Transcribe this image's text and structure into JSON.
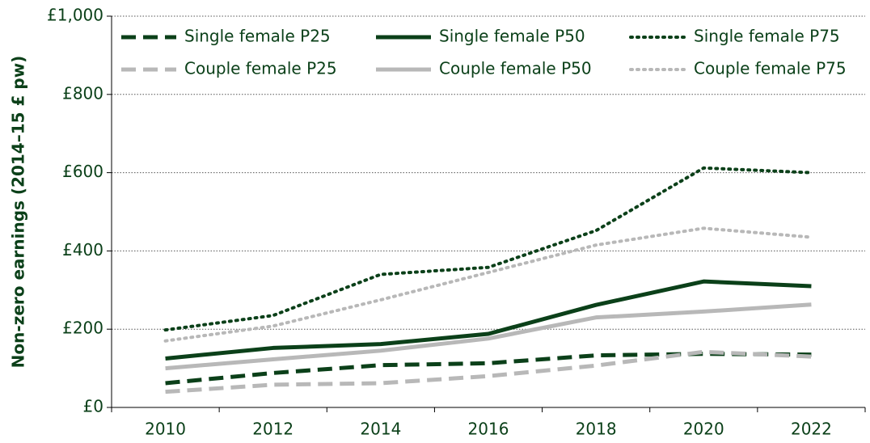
{
  "chart_data": {
    "type": "line",
    "y_label": "Non-zero earnings (2014–15 £ pw)",
    "categories": [
      "2010",
      "2012",
      "2014",
      "2016",
      "2018",
      "2020",
      "2022"
    ],
    "series": [
      {
        "name": "Single female P25",
        "color": "#0b4019",
        "style": "dashed",
        "values": [
          62,
          88,
          108,
          113,
          133,
          137,
          135
        ]
      },
      {
        "name": "Single female P50",
        "color": "#0b4019",
        "style": "solid",
        "values": [
          125,
          152,
          162,
          188,
          262,
          322,
          310
        ]
      },
      {
        "name": "Single female P75",
        "color": "#0b4019",
        "style": "dotted",
        "values": [
          198,
          235,
          340,
          358,
          452,
          612,
          600
        ]
      },
      {
        "name": "Couple female P25",
        "color": "#b8b8b8",
        "style": "dashed",
        "values": [
          40,
          58,
          62,
          80,
          107,
          142,
          130
        ]
      },
      {
        "name": "Couple female P50",
        "color": "#b8b8b8",
        "style": "solid",
        "values": [
          100,
          123,
          145,
          176,
          230,
          245,
          263
        ]
      },
      {
        "name": "Couple female P75",
        "color": "#b8b8b8",
        "style": "dotted",
        "values": [
          170,
          208,
          275,
          345,
          415,
          458,
          435
        ]
      }
    ],
    "ylim": [
      0,
      1000
    ],
    "yticks": [
      {
        "value": 0,
        "label": "£0"
      },
      {
        "value": 200,
        "label": "£200"
      },
      {
        "value": 400,
        "label": "£400"
      },
      {
        "value": 600,
        "label": "£600"
      },
      {
        "value": 800,
        "label": "£800"
      },
      {
        "value": 1000,
        "label": "£1,000"
      }
    ],
    "grid": true
  }
}
